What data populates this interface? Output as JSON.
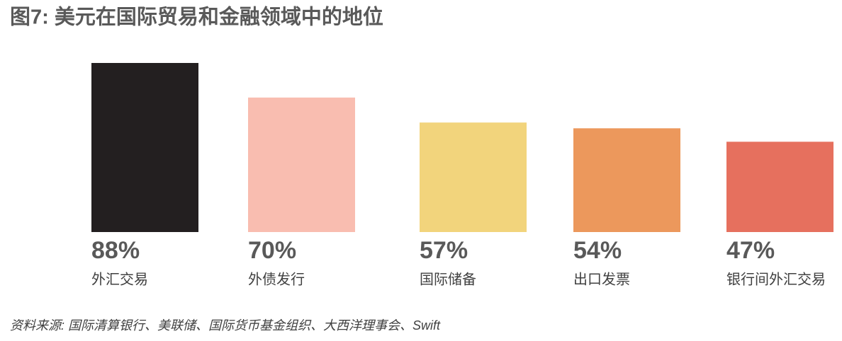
{
  "chart_data": {
    "type": "bar",
    "title": "图7: 美元在国际贸易和金融领域中的地位",
    "categories": [
      "外汇交易",
      "外债发行",
      "国际储备",
      "出口发票",
      "银行间外汇交易"
    ],
    "values": [
      88,
      70,
      57,
      54,
      47
    ],
    "value_labels": [
      "88%",
      "70%",
      "57%",
      "54%",
      "47%"
    ],
    "colors": [
      "#231f20",
      "#f9bdb0",
      "#f2d47c",
      "#ec985c",
      "#e6705e"
    ],
    "source": "资料来源: 国际清算银行、美联储、国际货币基金组织、大西洋理事会、Swift"
  }
}
